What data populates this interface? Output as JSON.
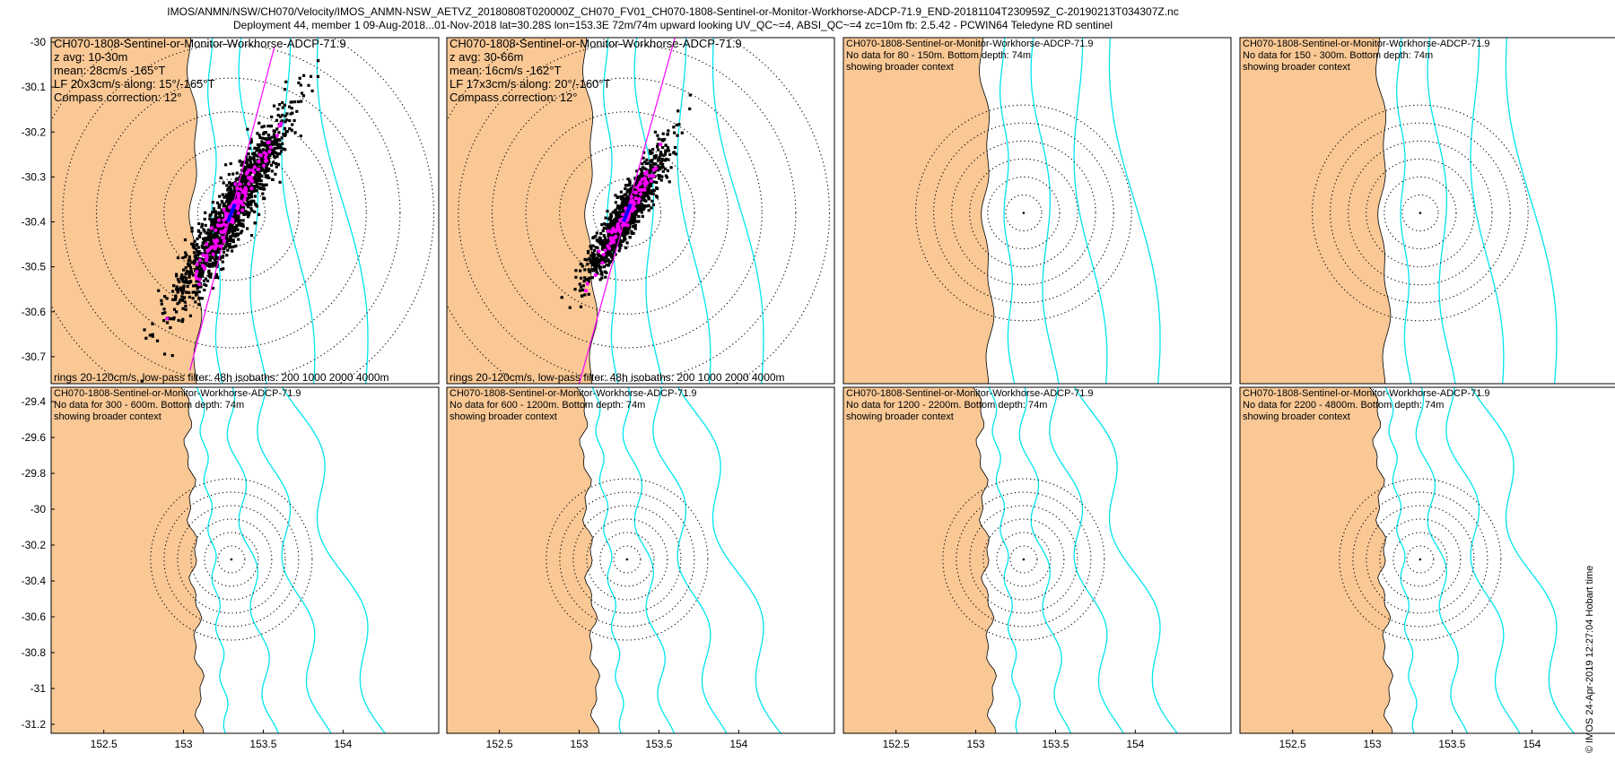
{
  "header": {
    "line1": "IMOS/ANMN/NSW/CH070/Velocity/IMOS_ANMN-NSW_AETVZ_20180808T020000Z_CH070_FV01_CH070-1808-Sentinel-or-Monitor-Workhorse-ADCP-71.9_END-20181104T230959Z_C-20190213T034307Z.nc",
    "line2": "Deployment 44, member 1 09-Aug-2018...01-Nov-2018 lat=30.28S lon=153.3E 72m/74m upward looking UV_QC~=4, ABSI_QC~=4 zc=10m fb: 2.5.42 - PCWIN64 Teledyne RD sentinel"
  },
  "credit": "© IMOS 24-Apr-2019 12:27:04 Hobart time",
  "colors": {
    "land": "#f9c895",
    "isobath": "#00e5ee",
    "scatter": "#000000",
    "lowpass": "#ff00ff",
    "major_axis": "#ff00ff",
    "mean": "#0000ff"
  },
  "chart_data": [
    {
      "type": "scatter",
      "panel": "row1-col1",
      "xlim": [
        152.17,
        154.6
      ],
      "ylim": [
        -30.76,
        -29.99
      ],
      "yticks": [
        "-30",
        "-30.1",
        "-30.2",
        "-30.3",
        "-30.4",
        "-30.5",
        "-30.6",
        "-30.7"
      ],
      "ytick_values": [
        -30,
        -30.1,
        -30.2,
        -30.3,
        -30.4,
        -30.5,
        -30.6,
        -30.7
      ],
      "xticks": [],
      "xtick_values": [],
      "text_lines": [
        "CH070-1808-Sentinel-or-Monitor-Workhorse-ADCP-71.9",
        "z avg: 10-30m",
        "mean: 28cm/s -165°T",
        "LF 20x3cm/s along: 15°/-165°T",
        "Compass correction: 12°"
      ],
      "footer": "rings 20-120cm/s, low-pass filter: 48h isobaths: 200 1000 2000 4000m",
      "center": [
        153.3,
        -30.38
      ],
      "ring_spacing_lat": 0.075,
      "rings": 6,
      "cloud": {
        "center": [
          153.3,
          -30.38
        ],
        "major_lat": 0.29,
        "minor_lon": 0.12,
        "points": 1500
      },
      "lowpass_points": 130,
      "major_axis": [
        [
          153.04,
          -30.73
        ],
        [
          153.57,
          -30.01
        ]
      ]
    },
    {
      "type": "scatter",
      "panel": "row1-col2",
      "xlim": [
        152.17,
        154.6
      ],
      "ylim": [
        -30.76,
        -29.99
      ],
      "yticks": [],
      "ytick_values": [],
      "xticks": [],
      "xtick_values": [],
      "text_lines": [
        "CH070-1808-Sentinel-or-Monitor-Workhorse-ADCP-71.9",
        "z avg: 30-66m",
        "mean: 16cm/s -162°T",
        "LF 17x3cm/s along: 20°/-160°T",
        "Compass correction: 12°"
      ],
      "footer": "rings 20-120cm/s, low-pass filter: 48h isobaths: 200 1000 2000 4000m",
      "center": [
        153.3,
        -30.38
      ],
      "ring_spacing_lat": 0.075,
      "rings": 6,
      "cloud": {
        "center": [
          153.3,
          -30.38
        ],
        "major_lat": 0.2,
        "minor_lon": 0.09,
        "points": 1100
      },
      "lowpass_points": 110,
      "major_axis": [
        [
          153.0,
          -30.76
        ],
        [
          153.6,
          -29.99
        ]
      ]
    },
    {
      "type": "scatter",
      "panel": "row1-col3",
      "xlim": [
        152.17,
        154.6
      ],
      "ylim": [
        -30.76,
        -29.99
      ],
      "yticks": [],
      "ytick_values": [],
      "xticks": [],
      "xtick_values": [],
      "text_lines": [
        "CH070-1808-Sentinel-or-Monitor-Workhorse-ADCP-71.9",
        "No data for 80 - 150m. Bottom depth: 74m",
        "showing broader context"
      ],
      "footer": "",
      "center": [
        153.3,
        -30.38
      ],
      "ring_spacing_lat": 0.04,
      "rings": 6
    },
    {
      "type": "scatter",
      "panel": "row1-col4",
      "xlim": [
        152.17,
        154.6
      ],
      "ylim": [
        -30.76,
        -29.99
      ],
      "yticks": [],
      "ytick_values": [],
      "xticks": [],
      "xtick_values": [],
      "text_lines": [
        "CH070-1808-Sentinel-or-Monitor-Workhorse-ADCP-71.9",
        "No data for 150 - 300m. Bottom depth: 74m",
        "showing broader context"
      ],
      "footer": "",
      "center": [
        153.3,
        -30.38
      ],
      "ring_spacing_lat": 0.04,
      "rings": 6
    },
    {
      "type": "scatter",
      "panel": "row2-col1",
      "xlim": [
        152.17,
        154.6
      ],
      "ylim": [
        -31.25,
        -29.32
      ],
      "yticks": [
        "-29.4",
        "-29.6",
        "-29.8",
        "-30",
        "-30.2",
        "-30.4",
        "-30.6",
        "-30.8",
        "-31",
        "-31.2"
      ],
      "ytick_values": [
        -29.4,
        -29.6,
        -29.8,
        -30,
        -30.2,
        -30.4,
        -30.6,
        -30.8,
        -31,
        -31.2
      ],
      "xticks": [
        "152.5",
        "153",
        "153.5",
        "154"
      ],
      "xtick_values": [
        152.5,
        153,
        153.5,
        154
      ],
      "text_lines": [
        "CH070-1808-Sentinel-or-Monitor-Workhorse-ADCP-71.9",
        "No data for 300 - 600m. Bottom depth: 74m",
        "showing broader context"
      ],
      "footer": "",
      "center": [
        153.3,
        -30.28
      ],
      "ring_spacing_lat": 0.075,
      "rings": 6
    },
    {
      "type": "scatter",
      "panel": "row2-col2",
      "xlim": [
        152.17,
        154.6
      ],
      "ylim": [
        -31.25,
        -29.32
      ],
      "yticks": [],
      "ytick_values": [],
      "xticks": [
        "152.5",
        "153",
        "153.5",
        "154"
      ],
      "xtick_values": [
        152.5,
        153,
        153.5,
        154
      ],
      "text_lines": [
        "CH070-1808-Sentinel-or-Monitor-Workhorse-ADCP-71.9",
        "No data for 600 - 1200m. Bottom depth: 74m",
        "showing broader context"
      ],
      "footer": "",
      "center": [
        153.3,
        -30.28
      ],
      "ring_spacing_lat": 0.075,
      "rings": 6
    },
    {
      "type": "scatter",
      "panel": "row2-col3",
      "xlim": [
        152.17,
        154.6
      ],
      "ylim": [
        -31.25,
        -29.32
      ],
      "yticks": [],
      "ytick_values": [],
      "xticks": [
        "152.5",
        "153",
        "153.5",
        "154"
      ],
      "xtick_values": [
        152.5,
        153,
        153.5,
        154
      ],
      "text_lines": [
        "CH070-1808-Sentinel-or-Monitor-Workhorse-ADCP-71.9",
        "No data for 1200 - 2200m. Bottom depth: 74m",
        "showing broader context"
      ],
      "footer": "",
      "center": [
        153.3,
        -30.28
      ],
      "ring_spacing_lat": 0.075,
      "rings": 6
    },
    {
      "type": "scatter",
      "panel": "row2-col4",
      "xlim": [
        152.17,
        154.6
      ],
      "ylim": [
        -31.25,
        -29.32
      ],
      "yticks": [],
      "ytick_values": [],
      "xticks": [
        "152.5",
        "153",
        "153.5",
        "154"
      ],
      "xtick_values": [
        152.5,
        153,
        153.5,
        154
      ],
      "text_lines": [
        "CH070-1808-Sentinel-or-Monitor-Workhorse-ADCP-71.9",
        "No data for 2200 - 4800m. Bottom depth: 74m",
        "showing broader context"
      ],
      "footer": "",
      "center": [
        153.3,
        -30.28
      ],
      "ring_spacing_lat": 0.075,
      "rings": 6
    }
  ]
}
